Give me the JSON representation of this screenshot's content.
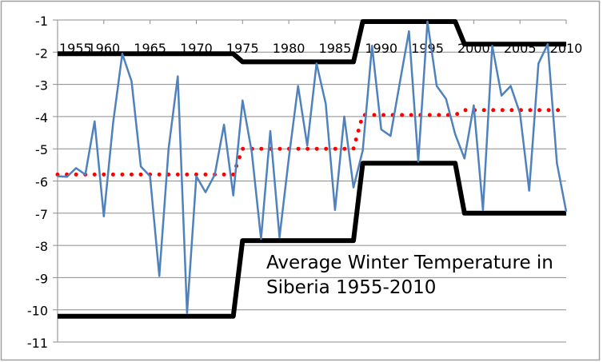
{
  "chart_data": {
    "type": "line",
    "title": "Average Winter Temperature in Siberia  1955-2010",
    "title_lines": [
      "Average Winter Temperature in",
      "Siberia  1955-2010"
    ],
    "xlabel": "",
    "ylabel": "",
    "xlim": [
      1955,
      2010
    ],
    "ylim": [
      -11,
      -1
    ],
    "x_ticks": [
      1955,
      1960,
      1965,
      1970,
      1975,
      1980,
      1985,
      1990,
      1995,
      2000,
      2005,
      2010
    ],
    "y_ticks": [
      -1,
      -2,
      -3,
      -4,
      -5,
      -6,
      -7,
      -8,
      -9,
      -10,
      -11
    ],
    "grid": "horizontal",
    "legend": "none",
    "x": [
      1955,
      1956,
      1957,
      1958,
      1959,
      1960,
      1961,
      1962,
      1963,
      1964,
      1965,
      1966,
      1967,
      1968,
      1969,
      1970,
      1971,
      1972,
      1973,
      1974,
      1975,
      1976,
      1977,
      1978,
      1979,
      1980,
      1981,
      1982,
      1983,
      1984,
      1985,
      1986,
      1987,
      1988,
      1989,
      1990,
      1991,
      1992,
      1993,
      1994,
      1995,
      1996,
      1997,
      1998,
      1999,
      2000,
      2001,
      2002,
      2003,
      2004,
      2005,
      2006,
      2007,
      2008,
      2009,
      2010
    ],
    "series": [
      {
        "style": "solid",
        "color": "#4f81bd",
        "values": [
          -5.85,
          -5.87,
          -5.6,
          -5.8,
          -4.15,
          -7.1,
          -4.2,
          -2.05,
          -2.9,
          -5.55,
          -5.85,
          -8.95,
          -5.0,
          -2.75,
          -10.1,
          -5.85,
          -6.35,
          -5.8,
          -4.25,
          -6.45,
          -3.5,
          -5.1,
          -7.8,
          -4.45,
          -7.75,
          -5.3,
          -3.05,
          -4.9,
          -2.35,
          -3.6,
          -6.9,
          -4.0,
          -6.2,
          -5.05,
          -1.8,
          -4.4,
          -4.6,
          -2.95,
          -1.35,
          -5.4,
          -1.05,
          -3.05,
          -3.45,
          -4.55,
          -5.3,
          -3.65,
          -6.9,
          -1.8,
          -3.35,
          -3.05,
          -3.9,
          -6.3,
          -2.35,
          -1.75,
          -5.45,
          -6.95
        ]
      },
      {
        "style": "dotted",
        "color": "#ff0000",
        "values": [
          -5.8,
          -5.8,
          -5.8,
          -5.8,
          -5.8,
          -5.8,
          -5.8,
          -5.8,
          -5.8,
          -5.8,
          -5.8,
          -5.8,
          -5.8,
          -5.8,
          -5.8,
          -5.8,
          -5.8,
          -5.8,
          -5.8,
          -5.8,
          -5.0,
          -5.0,
          -5.0,
          -5.0,
          -5.0,
          -5.0,
          -5.0,
          -5.0,
          -5.0,
          -5.0,
          -5.0,
          -5.0,
          -5.0,
          -3.95,
          -3.95,
          -3.95,
          -3.95,
          -3.95,
          -3.95,
          -3.95,
          -3.95,
          -3.95,
          -3.95,
          -3.95,
          -3.8,
          -3.8,
          -3.8,
          -3.8,
          -3.8,
          -3.8,
          -3.8,
          -3.8,
          -3.8,
          -3.8,
          -3.8,
          -3.8
        ]
      },
      {
        "style": "thick",
        "color": "#000000",
        "values": [
          -2.05,
          -2.05,
          -2.05,
          -2.05,
          -2.05,
          -2.05,
          -2.05,
          -2.05,
          -2.05,
          -2.05,
          -2.05,
          -2.05,
          -2.05,
          -2.05,
          -2.05,
          -2.05,
          -2.05,
          -2.05,
          -2.05,
          -2.05,
          -2.3,
          -2.3,
          -2.3,
          -2.3,
          -2.3,
          -2.3,
          -2.3,
          -2.3,
          -2.3,
          -2.3,
          -2.3,
          -2.3,
          -2.3,
          -1.05,
          -1.05,
          -1.05,
          -1.05,
          -1.05,
          -1.05,
          -1.05,
          -1.05,
          -1.05,
          -1.05,
          -1.05,
          -1.75,
          -1.75,
          -1.75,
          -1.75,
          -1.75,
          -1.75,
          -1.75,
          -1.75,
          -1.75,
          -1.75,
          -1.75,
          -1.75
        ]
      },
      {
        "style": "thick",
        "color": "#000000",
        "values": [
          -10.2,
          -10.2,
          -10.2,
          -10.2,
          -10.2,
          -10.2,
          -10.2,
          -10.2,
          -10.2,
          -10.2,
          -10.2,
          -10.2,
          -10.2,
          -10.2,
          -10.2,
          -10.2,
          -10.2,
          -10.2,
          -10.2,
          -10.2,
          -7.85,
          -7.85,
          -7.85,
          -7.85,
          -7.85,
          -7.85,
          -7.85,
          -7.85,
          -7.85,
          -7.85,
          -7.85,
          -7.85,
          -7.85,
          -5.45,
          -5.45,
          -5.45,
          -5.45,
          -5.45,
          -5.45,
          -5.45,
          -5.45,
          -5.45,
          -5.45,
          -5.45,
          -7.0,
          -7.0,
          -7.0,
          -7.0,
          -7.0,
          -7.0,
          -7.0,
          -7.0,
          -7.0,
          -7.0,
          -7.0,
          -7.0
        ]
      }
    ]
  }
}
